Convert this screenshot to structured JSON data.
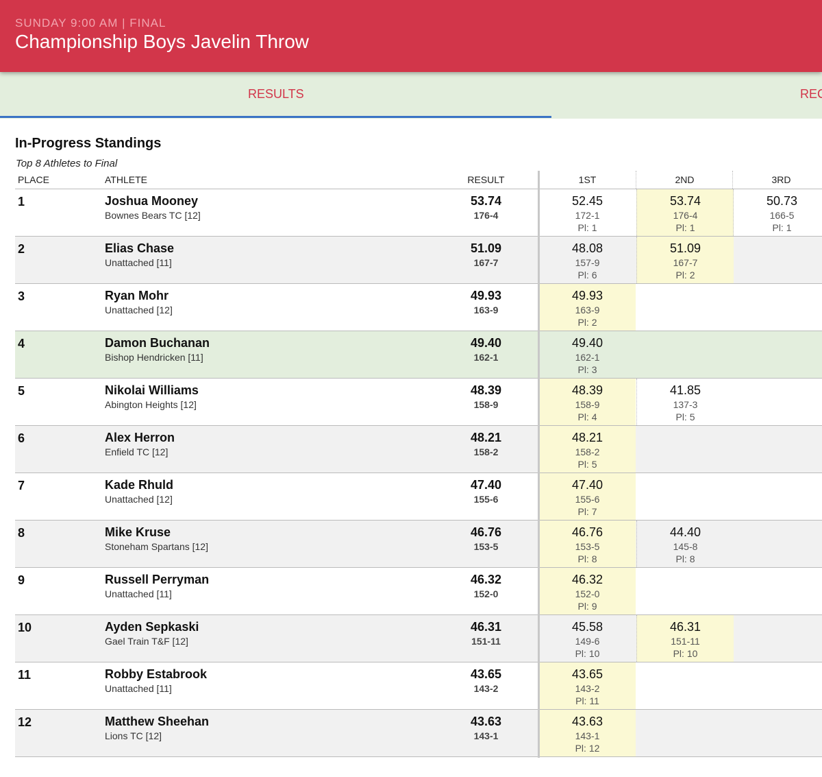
{
  "header": {
    "subtitle": "SUNDAY 9:00 AM | FINAL",
    "title": "Championship Boys Javelin Throw"
  },
  "tabs": [
    "RESULTS",
    "REC"
  ],
  "section": {
    "title": "In-Progress Standings",
    "subtitle": "Top 8 Athletes to Final"
  },
  "table": {
    "columns": [
      "PLACE",
      "ATHLETE",
      "RESULT",
      "1ST",
      "2ND",
      "3RD"
    ],
    "rows": [
      {
        "place": 1,
        "name": "Joshua Mooney",
        "team": "Bownes Bears TC [12]",
        "result": "53.74",
        "result_ft": "176-4",
        "attempts": [
          {
            "mark": "52.45",
            "ft": "172-1",
            "pl": "Pl: 1",
            "best": false
          },
          {
            "mark": "53.74",
            "ft": "176-4",
            "pl": "Pl: 1",
            "best": true
          },
          {
            "mark": "50.73",
            "ft": "166-5",
            "pl": "Pl: 1",
            "best": false
          }
        ]
      },
      {
        "place": 2,
        "name": "Elias Chase",
        "team": "Unattached [11]",
        "result": "51.09",
        "result_ft": "167-7",
        "attempts": [
          {
            "mark": "48.08",
            "ft": "157-9",
            "pl": "Pl: 6",
            "best": false
          },
          {
            "mark": "51.09",
            "ft": "167-7",
            "pl": "Pl: 2",
            "best": true
          }
        ]
      },
      {
        "place": 3,
        "name": "Ryan Mohr",
        "team": "Unattached [12]",
        "result": "49.93",
        "result_ft": "163-9",
        "attempts": [
          {
            "mark": "49.93",
            "ft": "163-9",
            "pl": "Pl: 2",
            "best": true
          }
        ]
      },
      {
        "place": 4,
        "name": "Damon Buchanan",
        "team": "Bishop Hendricken [11]",
        "result": "49.40",
        "result_ft": "162-1",
        "highlight": true,
        "attempts": [
          {
            "mark": "49.40",
            "ft": "162-1",
            "pl": "Pl: 3",
            "best": true
          }
        ]
      },
      {
        "place": 5,
        "name": "Nikolai Williams",
        "team": "Abington Heights [12]",
        "result": "48.39",
        "result_ft": "158-9",
        "attempts": [
          {
            "mark": "48.39",
            "ft": "158-9",
            "pl": "Pl: 4",
            "best": true
          },
          {
            "mark": "41.85",
            "ft": "137-3",
            "pl": "Pl: 5",
            "best": false
          }
        ]
      },
      {
        "place": 6,
        "name": "Alex Herron",
        "team": "Enfield TC [12]",
        "result": "48.21",
        "result_ft": "158-2",
        "attempts": [
          {
            "mark": "48.21",
            "ft": "158-2",
            "pl": "Pl: 5",
            "best": true
          }
        ]
      },
      {
        "place": 7,
        "name": "Kade Rhuld",
        "team": "Unattached [12]",
        "result": "47.40",
        "result_ft": "155-6",
        "attempts": [
          {
            "mark": "47.40",
            "ft": "155-6",
            "pl": "Pl: 7",
            "best": true
          }
        ]
      },
      {
        "place": 8,
        "name": "Mike Kruse",
        "team": "Stoneham Spartans [12]",
        "result": "46.76",
        "result_ft": "153-5",
        "attempts": [
          {
            "mark": "46.76",
            "ft": "153-5",
            "pl": "Pl: 8",
            "best": true
          },
          {
            "mark": "44.40",
            "ft": "145-8",
            "pl": "Pl: 8",
            "best": false
          }
        ]
      },
      {
        "place": 9,
        "name": "Russell Perryman",
        "team": "Unattached [11]",
        "result": "46.32",
        "result_ft": "152-0",
        "attempts": [
          {
            "mark": "46.32",
            "ft": "152-0",
            "pl": "Pl: 9",
            "best": true
          }
        ]
      },
      {
        "place": 10,
        "name": "Ayden Sepkaski",
        "team": "Gael Train T&F [12]",
        "result": "46.31",
        "result_ft": "151-11",
        "attempts": [
          {
            "mark": "45.58",
            "ft": "149-6",
            "pl": "Pl: 10",
            "best": false
          },
          {
            "mark": "46.31",
            "ft": "151-11",
            "pl": "Pl: 10",
            "best": true
          }
        ]
      },
      {
        "place": 11,
        "name": "Robby Estabrook",
        "team": "Unattached [11]",
        "result": "43.65",
        "result_ft": "143-2",
        "attempts": [
          {
            "mark": "43.65",
            "ft": "143-2",
            "pl": "Pl: 11",
            "best": true
          }
        ]
      },
      {
        "place": 12,
        "name": "Matthew Sheehan",
        "team": "Lions TC [12]",
        "result": "43.63",
        "result_ft": "143-1",
        "attempts": [
          {
            "mark": "43.63",
            "ft": "143-1",
            "pl": "Pl: 12",
            "best": true
          }
        ]
      }
    ]
  }
}
